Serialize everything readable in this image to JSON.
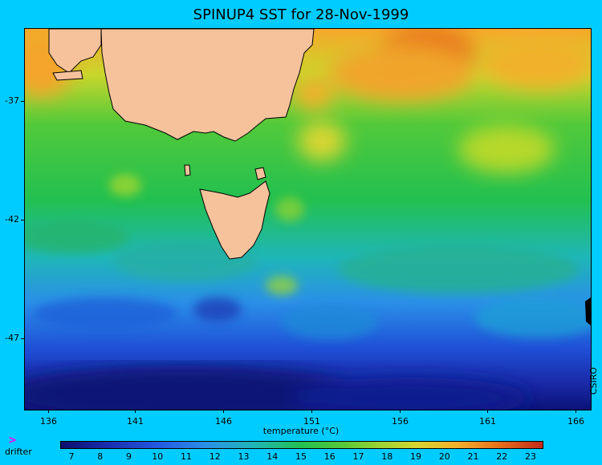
{
  "title": "SPINUP4 SST for 28-Nov-1999",
  "lat_labels": [
    "-37",
    "-42",
    "-47"
  ],
  "lon_labels": [
    "136",
    "141",
    "146",
    "151",
    "156",
    "161",
    "166"
  ],
  "colorbar": {
    "title": "temperature (°C)",
    "labels": [
      "7",
      "8",
      "9",
      "10",
      "11",
      "12",
      "13",
      "14",
      "15",
      "16",
      "17",
      "18",
      "19",
      "20",
      "21",
      "22",
      "23"
    ]
  },
  "legend": {
    "marker": ">",
    "label": "drifter"
  },
  "credit": "CSIRO",
  "colors": {
    "background": "#00ccff",
    "land": "#f5c29b",
    "cold": "#0a1a80",
    "warm": "#e0401a"
  }
}
